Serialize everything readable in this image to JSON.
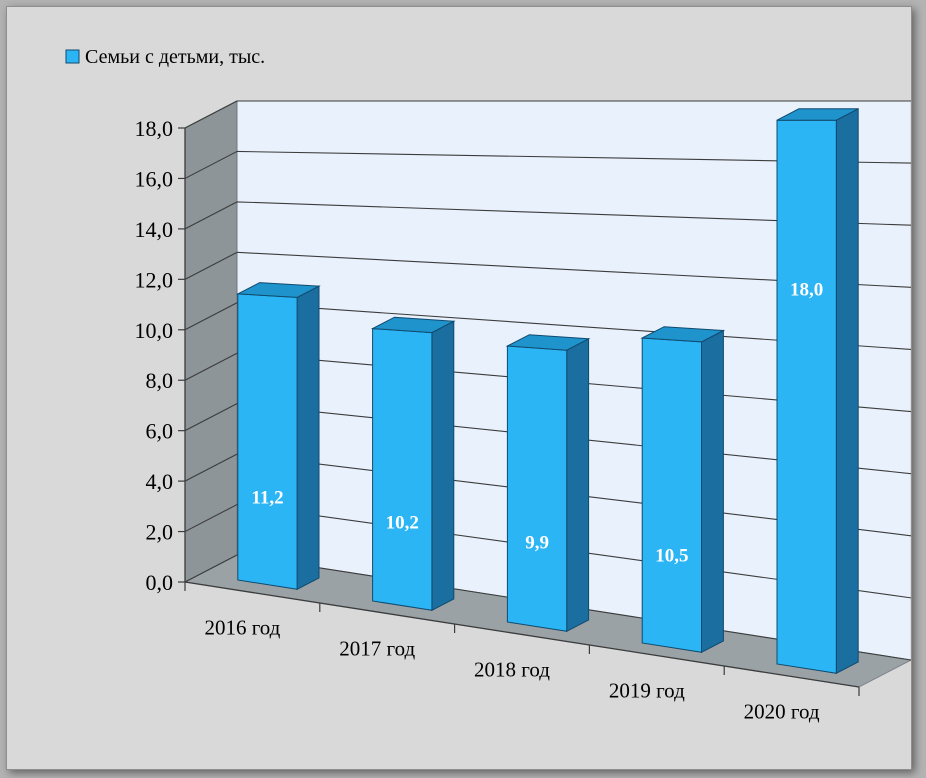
{
  "chart_data": {
    "type": "bar",
    "categories": [
      "2016 год",
      "2017 год",
      "2018 год",
      "2019 год",
      "2020 год"
    ],
    "series": [
      {
        "name": "Семьи с детьми, тыс.",
        "values": [
          11.2,
          10.2,
          9.9,
          10.5,
          18.0
        ],
        "value_labels": [
          "11,2",
          "10,2",
          "9,9",
          "10,5",
          "18,0"
        ]
      }
    ],
    "y_tick_labels": [
      "0,0",
      "2,0",
      "4,0",
      "6,0",
      "8,0",
      "10,0",
      "12,0",
      "14,0",
      "16,0",
      "18,0"
    ],
    "ylim": [
      0,
      18
    ],
    "legend_position": "top-left",
    "grid": true,
    "colors": {
      "bar_front": "#2bb5f5",
      "bar_side": "#1a6fa0",
      "bar_top": "#1e93cc",
      "bar_outline": "#114a6e",
      "wall": "#e9f2fc",
      "wall_left": "#8d9599",
      "floor": "#9aa2a6",
      "page_background": "#d9d9d9"
    }
  }
}
